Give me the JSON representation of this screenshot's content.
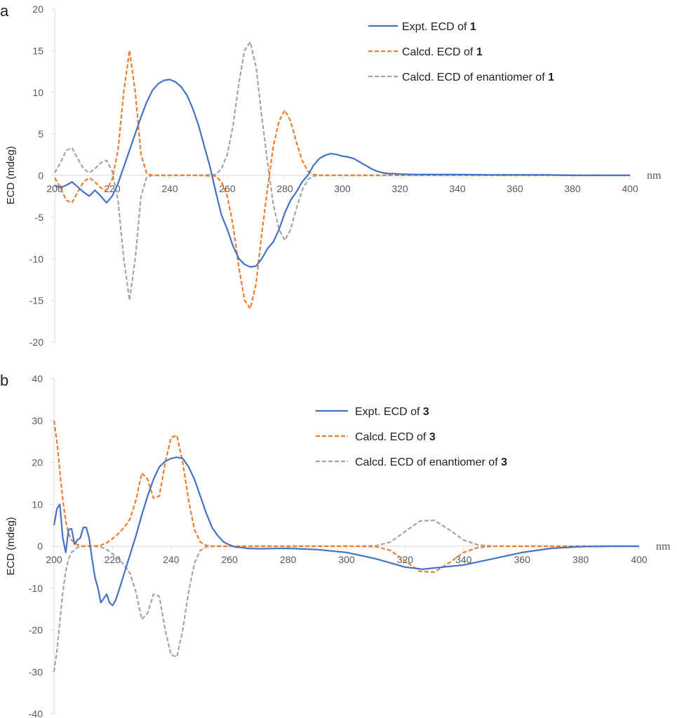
{
  "chart_data": [
    {
      "type": "line",
      "panel_label": "a",
      "title": "",
      "xlabel": "",
      "ylabel": "ECD (mdeg)",
      "x_unit": "nm",
      "xlim": [
        200,
        400
      ],
      "ylim": [
        -20,
        20
      ],
      "x_ticks": [
        "200",
        "220",
        "240",
        "260",
        "280",
        "300",
        "320",
        "340",
        "360",
        "380",
        "400"
      ],
      "y_ticks": [
        "20",
        "15",
        "10",
        "5",
        "0",
        "-5",
        "-10",
        "-15",
        "-20"
      ],
      "legend": "top-right",
      "series": [
        {
          "name": "Expt. ECD of ",
          "name_bold": "1",
          "color": "#4472c4",
          "style": "solid",
          "x": [
            200,
            202,
            204,
            206,
            208,
            210,
            212,
            214,
            216,
            218,
            220,
            222,
            224,
            226,
            228,
            230,
            232,
            234,
            236,
            238,
            240,
            242,
            244,
            246,
            248,
            250,
            252,
            254,
            256,
            258,
            260,
            262,
            264,
            266,
            268,
            270,
            272,
            274,
            276,
            278,
            280,
            282,
            284,
            286,
            288,
            290,
            292,
            294,
            296,
            298,
            300,
            302,
            304,
            306,
            308,
            310,
            312,
            314,
            316,
            318,
            320,
            325,
            330,
            340,
            350,
            360,
            370,
            380,
            390,
            400
          ],
          "y": [
            -1.2,
            -1.5,
            -1.2,
            -0.8,
            -1.4,
            -2.0,
            -2.5,
            -1.8,
            -2.5,
            -3.3,
            -2.5,
            -1.0,
            1.0,
            3.0,
            5.0,
            7.0,
            8.8,
            10.2,
            11.0,
            11.4,
            11.5,
            11.2,
            10.6,
            9.6,
            8.0,
            6.0,
            3.5,
            1.0,
            -2.0,
            -4.8,
            -6.5,
            -8.5,
            -10.0,
            -10.7,
            -11.0,
            -10.9,
            -10.0,
            -8.8,
            -8.0,
            -6.5,
            -4.5,
            -3.0,
            -2.0,
            -0.8,
            0.0,
            1.2,
            2.0,
            2.4,
            2.6,
            2.5,
            2.3,
            2.2,
            2.0,
            1.6,
            1.2,
            0.8,
            0.5,
            0.3,
            0.2,
            0.2,
            0.15,
            0.1,
            0.1,
            0.1,
            0.05,
            0.05,
            0.05,
            0.0,
            0.0,
            0.0
          ]
        },
        {
          "name": "Calcd. ECD of ",
          "name_bold": "1",
          "color": "#ed7d31",
          "style": "dashed",
          "x": [
            200,
            202,
            204,
            206,
            208,
            210,
            212,
            214,
            216,
            218,
            220,
            222,
            224,
            226,
            228,
            230,
            232,
            234,
            236,
            240,
            250,
            256,
            258,
            260,
            262,
            264,
            266,
            268,
            270,
            272,
            274,
            276,
            278,
            280,
            282,
            284,
            286,
            288,
            290,
            292,
            294,
            300,
            320,
            400
          ],
          "y": [
            -0.3,
            -1.5,
            -3.0,
            -3.3,
            -2.0,
            -0.8,
            -0.3,
            -0.8,
            -1.5,
            -1.8,
            -0.5,
            3.0,
            10.0,
            15.0,
            10.0,
            2.5,
            0.2,
            0.0,
            0.0,
            0.0,
            0.0,
            -0.1,
            -0.8,
            -2.5,
            -6.0,
            -11.0,
            -15.0,
            -16.0,
            -13.0,
            -7.0,
            -1.5,
            3.5,
            6.5,
            7.8,
            6.5,
            4.0,
            1.8,
            0.5,
            0.1,
            0.0,
            0.0,
            0.0,
            0.0,
            0.0
          ]
        },
        {
          "name": "Calcd. ECD of enantiomer of ",
          "name_bold": "1",
          "color": "#a5a5a5",
          "style": "dashed",
          "x": [
            200,
            202,
            204,
            206,
            208,
            210,
            212,
            214,
            216,
            218,
            220,
            222,
            224,
            226,
            228,
            230,
            232,
            234,
            236,
            240,
            250,
            256,
            258,
            260,
            262,
            264,
            266,
            268,
            270,
            272,
            274,
            276,
            278,
            280,
            282,
            284,
            286,
            288,
            290,
            292,
            294,
            300,
            320,
            400
          ],
          "y": [
            0.3,
            1.5,
            3.0,
            3.3,
            2.0,
            0.8,
            0.3,
            0.8,
            1.5,
            1.8,
            0.5,
            -3.0,
            -10.0,
            -15.0,
            -10.0,
            -2.5,
            -0.2,
            0.0,
            0.0,
            0.0,
            0.0,
            0.1,
            0.8,
            2.5,
            6.0,
            11.0,
            15.0,
            16.0,
            13.0,
            7.0,
            1.5,
            -3.5,
            -6.5,
            -7.8,
            -6.5,
            -4.0,
            -1.8,
            -0.5,
            -0.1,
            0.0,
            0.0,
            0.0,
            0.0,
            0.0
          ]
        }
      ]
    },
    {
      "type": "line",
      "panel_label": "b",
      "title": "",
      "xlabel": "",
      "ylabel": "ECD (mdeg)",
      "x_unit": "nm",
      "xlim": [
        200,
        400
      ],
      "ylim": [
        -40,
        40
      ],
      "x_ticks": [
        "200",
        "220",
        "240",
        "260",
        "280",
        "300",
        "320",
        "340",
        "360",
        "380",
        "400"
      ],
      "y_ticks": [
        "40",
        "30",
        "20",
        "10",
        "0",
        "-10",
        "-20",
        "-30",
        "-40"
      ],
      "legend": "top-right",
      "series": [
        {
          "name": "Expt. ECD of ",
          "name_bold": "3",
          "color": "#4472c4",
          "style": "solid",
          "x": [
            200,
            201,
            202,
            203,
            204,
            205,
            206,
            207,
            208,
            209,
            210,
            211,
            212,
            213,
            214,
            215,
            216,
            217,
            218,
            219,
            220,
            221,
            222,
            224,
            226,
            228,
            230,
            232,
            234,
            236,
            238,
            240,
            242,
            244,
            246,
            248,
            250,
            252,
            254,
            256,
            258,
            260,
            262,
            264,
            266,
            270,
            280,
            290,
            300,
            310,
            320,
            326,
            330,
            340,
            350,
            360,
            370,
            380,
            390,
            400
          ],
          "y": [
            5.0,
            9.0,
            10.0,
            2.0,
            -1.5,
            4.0,
            4.2,
            0.5,
            1.5,
            2.0,
            4.5,
            4.5,
            2.0,
            -3.0,
            -7.5,
            -10.0,
            -13.5,
            -12.5,
            -11.5,
            -13.5,
            -14.2,
            -13.0,
            -11.0,
            -6.5,
            -2.0,
            2.5,
            7.5,
            12.0,
            16.0,
            19.0,
            20.3,
            21.0,
            21.3,
            21.0,
            19.0,
            16.0,
            12.0,
            8.0,
            4.5,
            2.5,
            1.0,
            0.3,
            -0.2,
            -0.3,
            -0.5,
            -0.6,
            -0.5,
            -0.8,
            -1.5,
            -3.0,
            -5.0,
            -5.5,
            -5.2,
            -4.5,
            -3.0,
            -1.5,
            -0.5,
            -0.1,
            0.0,
            0.0
          ]
        },
        {
          "name": "Calcd. ECD of ",
          "name_bold": "3",
          "color": "#ed7d31",
          "style": "dashed",
          "x": [
            200,
            201,
            202,
            203,
            204,
            205,
            206,
            208,
            210,
            212,
            214,
            216,
            218,
            220,
            222,
            224,
            226,
            228,
            230,
            232,
            234,
            236,
            238,
            240,
            242,
            244,
            246,
            248,
            250,
            252,
            254,
            256,
            260,
            270,
            300,
            310,
            315,
            320,
            325,
            330,
            335,
            340,
            345,
            350,
            400
          ],
          "y": [
            30.0,
            25.0,
            18.0,
            11.0,
            6.0,
            3.0,
            1.5,
            0.3,
            0.0,
            0.0,
            0.0,
            0.2,
            0.8,
            1.8,
            3.0,
            4.5,
            6.5,
            11.0,
            17.5,
            16.0,
            11.5,
            12.0,
            20.0,
            26.0,
            26.5,
            20.0,
            11.0,
            4.0,
            1.0,
            0.2,
            0.0,
            0.0,
            0.0,
            0.0,
            0.0,
            -0.1,
            -1.0,
            -3.5,
            -6.0,
            -6.2,
            -4.0,
            -1.5,
            -0.3,
            0.0,
            0.0
          ]
        },
        {
          "name": "Calcd. ECD of enantiomer of ",
          "name_bold": "3",
          "color": "#a5a5a5",
          "style": "dashed",
          "x": [
            200,
            201,
            202,
            203,
            204,
            205,
            206,
            208,
            210,
            212,
            214,
            216,
            218,
            220,
            222,
            224,
            226,
            228,
            230,
            232,
            234,
            236,
            238,
            240,
            242,
            244,
            246,
            248,
            250,
            252,
            254,
            256,
            260,
            270,
            300,
            310,
            315,
            320,
            325,
            330,
            335,
            340,
            345,
            350,
            400
          ],
          "y": [
            -30.0,
            -25.0,
            -18.0,
            -11.0,
            -6.0,
            -3.0,
            -1.5,
            -0.3,
            0.0,
            0.0,
            0.0,
            -0.2,
            -0.8,
            -1.8,
            -3.0,
            -4.5,
            -6.5,
            -11.0,
            -17.5,
            -16.0,
            -11.5,
            -12.0,
            -20.0,
            -26.0,
            -26.5,
            -20.0,
            -11.0,
            -4.0,
            -1.0,
            -0.2,
            0.0,
            0.0,
            0.0,
            0.0,
            0.0,
            0.1,
            1.0,
            3.5,
            6.0,
            6.2,
            4.0,
            1.5,
            0.3,
            0.0,
            0.0
          ]
        }
      ]
    }
  ]
}
